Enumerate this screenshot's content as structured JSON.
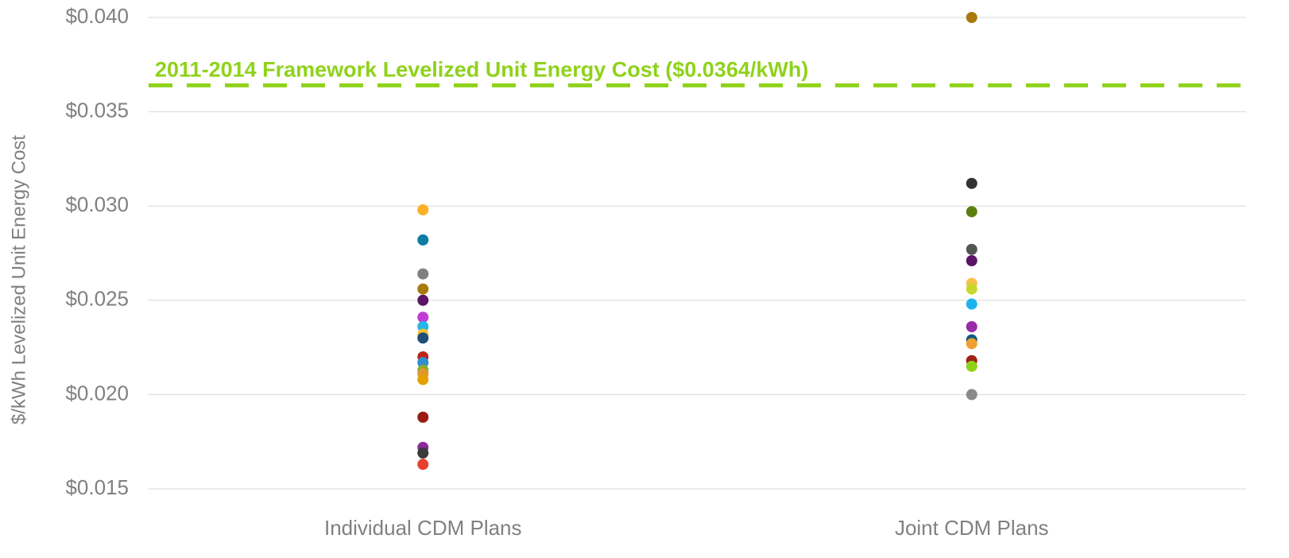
{
  "chart_data": {
    "type": "dot",
    "ylabel": "$/kWh Levelized Unit Energy Cost",
    "categories": [
      "Individual CDM Plans",
      "Joint CDM Plans"
    ],
    "values": [
      [
        0.0298,
        0.0282,
        0.0264,
        0.0256,
        0.025,
        0.0241,
        0.0236,
        0.0232,
        0.023,
        0.022,
        0.0217,
        0.0213,
        0.0211,
        0.0208,
        0.0188,
        0.0172,
        0.0169,
        0.0163
      ],
      [
        0.04,
        0.0312,
        0.0297,
        0.0277,
        0.0271,
        0.0259,
        0.0256,
        0.0248,
        0.0236,
        0.0229,
        0.0227,
        0.0218,
        0.0215,
        0.02
      ]
    ],
    "colors": [
      [
        "#fbb125",
        "#0e7ca6",
        "#7f7f7f",
        "#a97a0b",
        "#5a1565",
        "#c23bd4",
        "#27b6ea",
        "#f4c430",
        "#1f4e79",
        "#c0251b",
        "#2f8fcf",
        "#8aaa2a",
        "#e0962e",
        "#e5a100",
        "#9b1c12",
        "#8c2a9c",
        "#3a3a3a",
        "#e8402e"
      ],
      [
        "#a97a0b",
        "#333333",
        "#5a7f0f",
        "#555555",
        "#5a1565",
        "#f9c04b",
        "#c8d72a",
        "#1fb3ee",
        "#9a2aa8",
        "#135b7d",
        "#f0a030",
        "#a02018",
        "#8fd21a",
        "#8a8a8a"
      ]
    ],
    "reference_line": {
      "value": 0.0364,
      "label": "2011-2014 Framework Levelized Unit Energy Cost ($0.0364/kWh)",
      "color": "#8fd21a"
    },
    "ylim": [
      0.015,
      0.04
    ],
    "yticks": [
      {
        "value": 0.015,
        "label": "$0.015"
      },
      {
        "value": 0.02,
        "label": "$0.020"
      },
      {
        "value": 0.025,
        "label": "$0.025"
      },
      {
        "value": 0.03,
        "label": "$0.030"
      },
      {
        "value": 0.035,
        "label": "$0.035"
      },
      {
        "value": 0.04,
        "label": "$0.040"
      }
    ],
    "grid": true
  }
}
